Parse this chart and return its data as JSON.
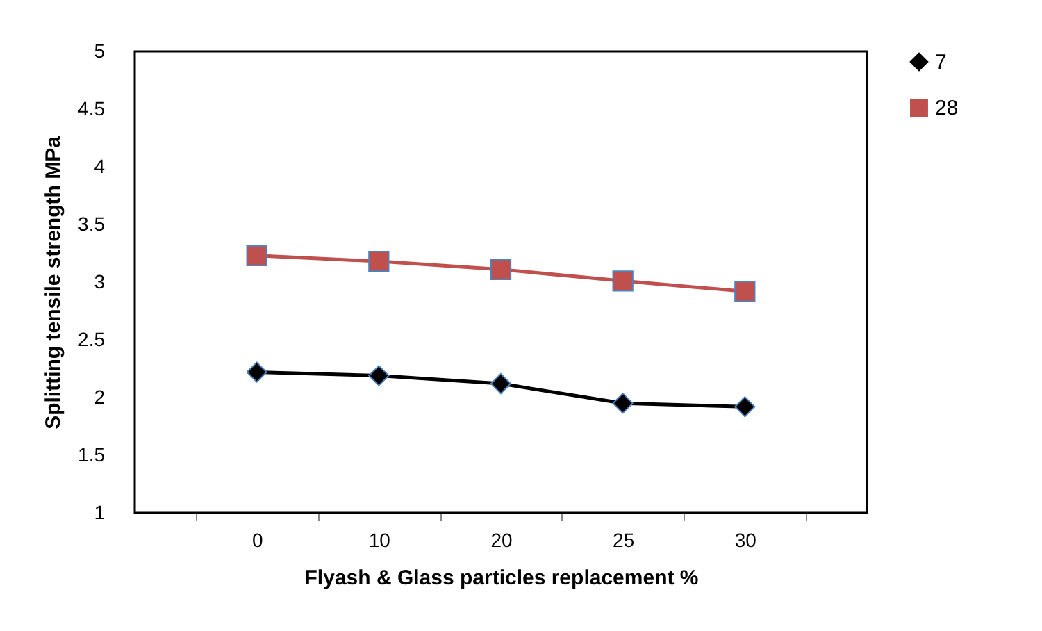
{
  "chart_data": {
    "type": "line",
    "xlabel": "Flyash & Glass particles replacement %",
    "ylabel": "Splitting tensile strength MPa",
    "categories": [
      "0",
      "10",
      "20",
      "25",
      "30"
    ],
    "series": [
      {
        "name": "7",
        "color": "#000000",
        "marker": "diamond",
        "values": [
          2.22,
          2.19,
          2.12,
          1.95,
          1.92
        ]
      },
      {
        "name": "28",
        "color": "#c0504d",
        "marker": "square",
        "values": [
          3.23,
          3.18,
          3.11,
          3.01,
          2.92
        ]
      }
    ],
    "ylim": [
      1,
      5
    ],
    "yticks": [
      1,
      1.5,
      2,
      2.5,
      3,
      3.5,
      4,
      4.5,
      5
    ],
    "grid": false,
    "legend": "right",
    "line_style": "solid"
  }
}
